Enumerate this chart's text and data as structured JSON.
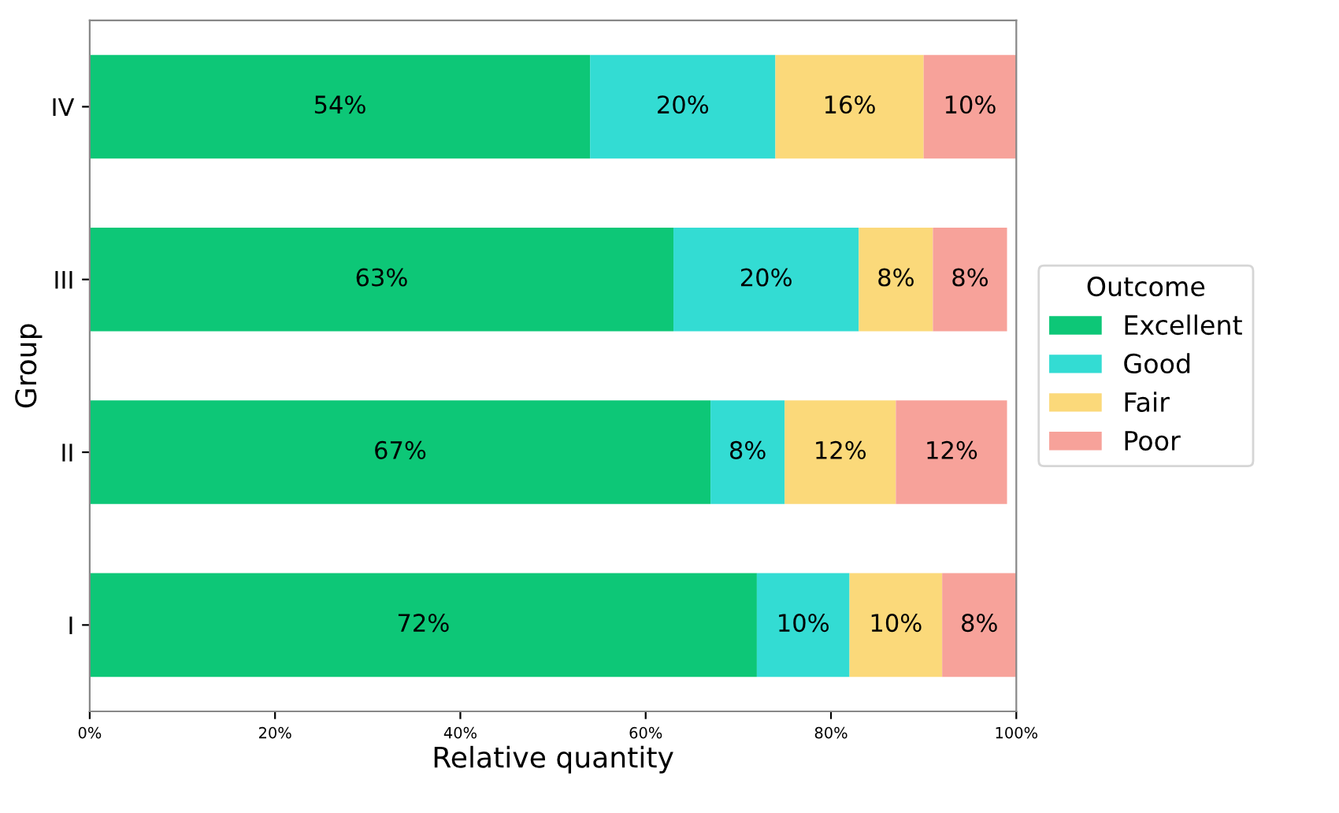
{
  "chart_data": {
    "type": "bar",
    "orientation": "horizontal",
    "stacked": true,
    "categories": [
      "IV",
      "III",
      "II",
      "I"
    ],
    "series": [
      {
        "name": "Excellent",
        "color": "#0dc777",
        "values": [
          54,
          63,
          67,
          72
        ],
        "value_labels": [
          "54%",
          "63%",
          "67%",
          "72%"
        ]
      },
      {
        "name": "Good",
        "color": "#33dcd3",
        "values": [
          20,
          20,
          8,
          10
        ],
        "value_labels": [
          "20%",
          "20%",
          "8%",
          "10%"
        ]
      },
      {
        "name": "Fair",
        "color": "#fbd97a",
        "values": [
          16,
          8,
          12,
          10
        ],
        "value_labels": [
          "16%",
          "8%",
          "12%",
          "10%"
        ]
      },
      {
        "name": "Poor",
        "color": "#f7a29a",
        "values": [
          10,
          8,
          12,
          8
        ],
        "value_labels": [
          "10%",
          "8%",
          "12%",
          "8%"
        ]
      }
    ],
    "xlim": [
      0,
      100
    ],
    "xticks": [
      {
        "value": 0,
        "label": "0%"
      },
      {
        "value": 20,
        "label": "20%"
      },
      {
        "value": 40,
        "label": "40%"
      },
      {
        "value": 60,
        "label": "60%"
      },
      {
        "value": 80,
        "label": "80%"
      },
      {
        "value": 100,
        "label": "100%"
      }
    ],
    "xlabel": "Relative quantity",
    "ylabel": "Group",
    "legend_title": "Outcome",
    "legend": "right",
    "grid": false
  }
}
